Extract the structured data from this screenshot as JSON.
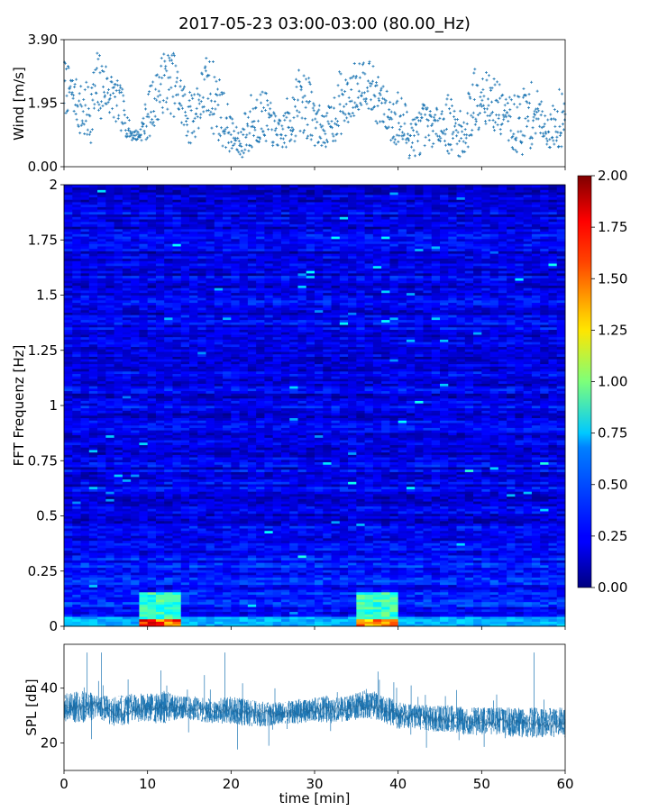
{
  "title": "2017-05-23 03:00-03:00 (80.00_Hz)",
  "chart_data": [
    {
      "type": "scatter",
      "name": "wind",
      "ylabel": "Wind [m/s]",
      "xlim": [
        0,
        60
      ],
      "ylim": [
        0,
        3.9
      ],
      "yticks": [
        0,
        1.95,
        3.9
      ],
      "ytick_labels": [
        "0.00",
        "1.95",
        "3.90"
      ],
      "color": "#1f77b4",
      "marker": "+",
      "wind_envelope": {
        "x": [
          0,
          1,
          2,
          3,
          4,
          5,
          6,
          7,
          8,
          9,
          10,
          11,
          12,
          13,
          14,
          15,
          16,
          17,
          18,
          19,
          20,
          21,
          22,
          23,
          24,
          25,
          26,
          27,
          28,
          29,
          30,
          31,
          32,
          33,
          34,
          35,
          36,
          37,
          38,
          39,
          40,
          41,
          42,
          43,
          44,
          45,
          46,
          47,
          48,
          49,
          50,
          51,
          52,
          53,
          54,
          55,
          56,
          57,
          58,
          59,
          60
        ],
        "low": [
          1.5,
          1.8,
          0.8,
          0.6,
          1.2,
          1.6,
          1.4,
          1.0,
          0.8,
          0.8,
          0.8,
          1.3,
          1.7,
          1.6,
          1.2,
          0.6,
          1.0,
          1.5,
          0.9,
          0.6,
          0.4,
          0.3,
          0.2,
          0.6,
          0.8,
          0.6,
          0.5,
          0.5,
          0.9,
          0.9,
          0.6,
          0.6,
          0.6,
          0.9,
          1.3,
          1.6,
          2.0,
          1.4,
          1.2,
          0.8,
          0.5,
          0.2,
          0.3,
          0.4,
          0.6,
          0.8,
          0.4,
          0.3,
          0.3,
          0.7,
          1.4,
          1.2,
          1.0,
          0.8,
          0.3,
          0.3,
          0.6,
          1.0,
          0.6,
          0.3,
          0.8
        ],
        "high": [
          3.4,
          2.8,
          2.6,
          2.6,
          3.6,
          3.3,
          2.8,
          2.4,
          1.2,
          1.1,
          2.3,
          2.9,
          3.6,
          3.6,
          2.9,
          2.3,
          2.7,
          3.4,
          3.3,
          2.5,
          1.6,
          1.0,
          2.2,
          2.4,
          2.4,
          1.8,
          1.4,
          2.4,
          3.0,
          3.0,
          2.3,
          1.6,
          2.0,
          3.0,
          2.6,
          3.4,
          3.4,
          3.1,
          2.6,
          2.2,
          2.4,
          2.0,
          1.6,
          2.0,
          1.8,
          1.8,
          2.3,
          1.8,
          1.6,
          3.4,
          3.2,
          2.8,
          2.6,
          2.2,
          2.2,
          2.6,
          2.6,
          2.2,
          1.4,
          2.4,
          3.0
        ]
      }
    },
    {
      "type": "heatmap",
      "name": "spectrogram",
      "ylabel": "FFT Frequenz [Hz]",
      "xlim": [
        0,
        60
      ],
      "ylim": [
        0,
        2
      ],
      "yticks": [
        0,
        0.25,
        0.5,
        0.75,
        1,
        1.25,
        1.5,
        1.75,
        2
      ],
      "ytick_labels": [
        "0",
        "0.25",
        "0.5",
        "0.75",
        "1",
        "1.25",
        "1.5",
        "1.75",
        "2"
      ],
      "colormap": "jet",
      "clim": [
        0,
        2
      ],
      "colorbar_ticks": [
        "0.00",
        "0.25",
        "0.50",
        "0.75",
        "1.00",
        "1.25",
        "1.50",
        "1.75",
        "2.00"
      ],
      "colorbar_tick_values": [
        0,
        0.25,
        0.5,
        0.75,
        1.0,
        1.25,
        1.5,
        1.75,
        2.0
      ],
      "background_level": 0.2,
      "hotspots": [
        {
          "x_from": 9.5,
          "x_to": 13.5,
          "f_from": 0.0,
          "f_to": 0.15,
          "level": 1.0
        },
        {
          "x_from": 35.5,
          "x_to": 39.5,
          "f_from": 0.0,
          "f_to": 0.15,
          "level": 1.0
        },
        {
          "x_from": 0,
          "x_to": 60,
          "f_from": 0.0,
          "f_to": 0.04,
          "level": 0.7
        },
        {
          "x_from": 9.5,
          "x_to": 13.5,
          "f_from": 0.0,
          "f_to": 0.03,
          "level": 1.9
        },
        {
          "x_from": 35.5,
          "x_to": 39.5,
          "f_from": 0.0,
          "f_to": 0.03,
          "level": 1.8
        }
      ]
    },
    {
      "type": "line",
      "name": "spl",
      "ylabel": "SPL [dB]",
      "xlabel": "time [min]",
      "xlim": [
        0,
        60
      ],
      "ylim": [
        10,
        56
      ],
      "yticks": [
        20,
        40
      ],
      "ytick_labels": [
        "20",
        "40"
      ],
      "xticks": [
        0,
        10,
        20,
        30,
        40,
        50,
        60
      ],
      "xtick_labels": [
        "0",
        "10",
        "20",
        "30",
        "40",
        "50",
        "60"
      ],
      "color": "#1f77b4",
      "spl_envelope": {
        "x": [
          0,
          2,
          4,
          6,
          8,
          10,
          12,
          14,
          16,
          18,
          20,
          22,
          24,
          26,
          28,
          30,
          32,
          34,
          36,
          38,
          40,
          42,
          44,
          46,
          48,
          50,
          52,
          54,
          56,
          58,
          60
        ],
        "low": [
          28,
          27,
          29,
          26,
          27,
          28,
          27,
          29,
          28,
          27,
          27,
          26,
          26,
          27,
          27,
          28,
          27,
          28,
          29,
          28,
          25,
          25,
          24,
          24,
          23,
          23,
          23,
          22,
          22,
          22,
          22
        ],
        "high": [
          38,
          39,
          38,
          37,
          38,
          38,
          39,
          37,
          37,
          36,
          37,
          36,
          35,
          35,
          36,
          37,
          37,
          37,
          40,
          38,
          35,
          34,
          34,
          34,
          33,
          33,
          33,
          33,
          33,
          33,
          33
        ],
        "mean": [
          33,
          33,
          34,
          31,
          32,
          33,
          33,
          33,
          32,
          32,
          32,
          31,
          31,
          31,
          31,
          32,
          32,
          33,
          34,
          33,
          30,
          30,
          29,
          29,
          28,
          28,
          28,
          28,
          27,
          27,
          27
        ]
      }
    }
  ]
}
